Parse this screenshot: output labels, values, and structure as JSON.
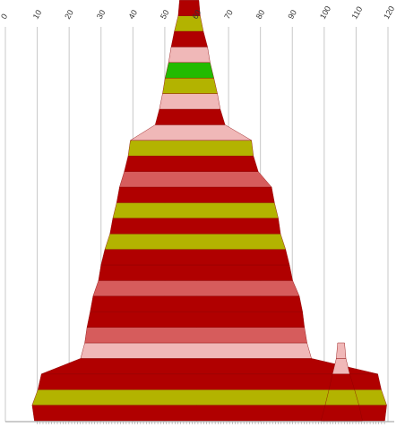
{
  "chart_data": {
    "type": "area",
    "description_of_encoding": "",
    "x_axis": {
      "position": "top",
      "ticks": [
        0,
        10,
        20,
        30,
        40,
        50,
        60,
        70,
        80,
        90,
        100,
        110,
        120
      ],
      "tick_labels": [
        "0",
        "10",
        "20",
        "30",
        "40",
        "50",
        "60",
        "70",
        "80",
        "90",
        "100",
        "110",
        "120"
      ],
      "range": [
        0,
        120
      ]
    },
    "grid": true,
    "colors": {
      "dark_red": "#b00000",
      "olive": "#b3b300",
      "light_pink": "#f0b8b8",
      "green": "#22bb00",
      "salmon": "#d65c5c"
    },
    "shapes": [
      {
        "name": "",
        "bands": [
          {
            "color": "dark_red",
            "x_min": 9.1,
            "x_max": 119.0
          },
          {
            "color": "olive",
            "x_min": 8.4,
            "x_max": 119.6
          },
          {
            "color": "dark_red",
            "x_min": 10.2,
            "x_max": 117.9
          },
          {
            "color": "dark_red",
            "x_min": 11.3,
            "x_max": 116.8
          },
          {
            "color": "light_pink",
            "x_min": 23.6,
            "x_max": 96.0
          },
          {
            "color": "salmon",
            "x_min": 24.9,
            "x_max": 94.6
          },
          {
            "color": "dark_red",
            "x_min": 25.6,
            "x_max": 93.8
          },
          {
            "color": "dark_red",
            "x_min": 26.6,
            "x_max": 93.2
          },
          {
            "color": "salmon",
            "x_min": 27.5,
            "x_max": 92.2
          },
          {
            "color": "dark_red",
            "x_min": 29.2,
            "x_max": 90.1
          },
          {
            "color": "dark_red",
            "x_min": 30.0,
            "x_max": 89.1
          },
          {
            "color": "olive",
            "x_min": 31.2,
            "x_max": 87.9
          },
          {
            "color": "dark_red",
            "x_min": 32.8,
            "x_max": 86.3
          },
          {
            "color": "olive",
            "x_min": 33.7,
            "x_max": 85.6
          },
          {
            "color": "dark_red",
            "x_min": 34.9,
            "x_max": 84.4
          },
          {
            "color": "salmon",
            "x_min": 35.8,
            "x_max": 83.5
          },
          {
            "color": "dark_red",
            "x_min": 37.3,
            "x_max": 79.3
          },
          {
            "color": "olive",
            "x_min": 38.5,
            "x_max": 77.8
          },
          {
            "color": "light_pink",
            "x_min": 39.2,
            "x_max": 77.2
          },
          {
            "color": "dark_red",
            "x_min": 47.0,
            "x_max": 68.9
          },
          {
            "color": "light_pink",
            "x_min": 48.3,
            "x_max": 67.4
          },
          {
            "color": "olive",
            "x_min": 49.3,
            "x_max": 66.5
          },
          {
            "color": "green",
            "x_min": 50.1,
            "x_max": 65.4
          },
          {
            "color": "light_pink",
            "x_min": 51.2,
            "x_max": 64.2
          },
          {
            "color": "dark_red",
            "x_min": 52.0,
            "x_max": 63.4
          },
          {
            "color": "olive",
            "x_min": 53.0,
            "x_max": 62.1
          },
          {
            "color": "dark_red",
            "x_min": 54.2,
            "x_max": 61.1
          }
        ]
      },
      {
        "name": "",
        "bands": [
          {
            "color": "dark_red",
            "x_min": 99.0,
            "x_max": 112.0
          },
          {
            "color": "olive",
            "x_min": 100.3,
            "x_max": 110.9
          },
          {
            "color": "dark_red",
            "x_min": 101.5,
            "x_max": 109.5
          },
          {
            "color": "light_pink",
            "x_min": 102.6,
            "x_max": 108.0
          },
          {
            "color": "light_pink",
            "x_min": 103.8,
            "x_max": 106.8
          }
        ]
      }
    ]
  }
}
